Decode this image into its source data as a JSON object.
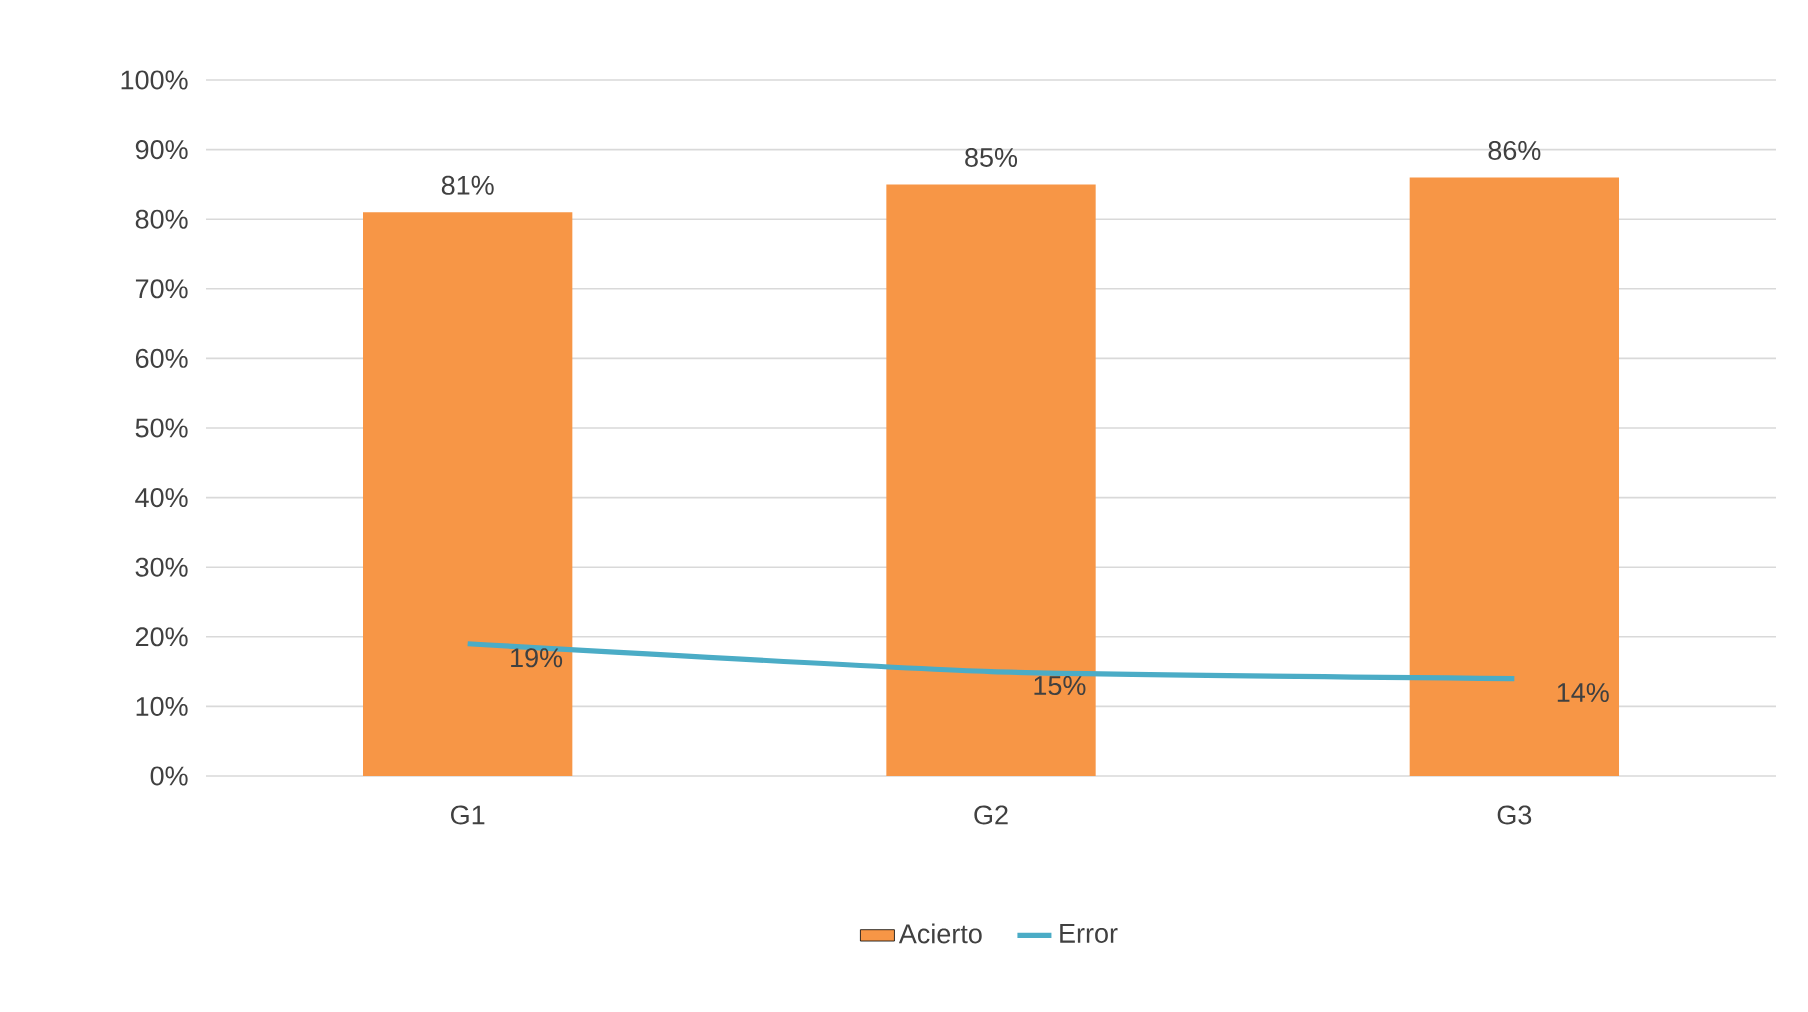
{
  "chart_data": {
    "type": "bar",
    "categories": [
      "G1",
      "G2",
      "G3"
    ],
    "series": [
      {
        "name": "Acierto",
        "color": "#f79646",
        "values": [
          81,
          85,
          86
        ],
        "value_labels": [
          "81%",
          "85%",
          "86%"
        ]
      },
      {
        "name": "Error",
        "type": "line",
        "color": "#4bacc6",
        "values": [
          19,
          15,
          14
        ],
        "value_labels": [
          "19%",
          "15%",
          "14%"
        ]
      }
    ],
    "ylim": [
      0,
      100
    ],
    "yticks": [
      {
        "value": 0,
        "label": "0%"
      },
      {
        "value": 10,
        "label": "10%"
      },
      {
        "value": 20,
        "label": "20%"
      },
      {
        "value": 30,
        "label": "30%"
      },
      {
        "value": 40,
        "label": "40%"
      },
      {
        "value": 50,
        "label": "50%"
      },
      {
        "value": 60,
        "label": "60%"
      },
      {
        "value": 70,
        "label": "70%"
      },
      {
        "value": 80,
        "label": "80%"
      },
      {
        "value": 90,
        "label": "90%"
      },
      {
        "value": 100,
        "label": "100%"
      }
    ],
    "grid": "y",
    "legend": "bottom"
  }
}
